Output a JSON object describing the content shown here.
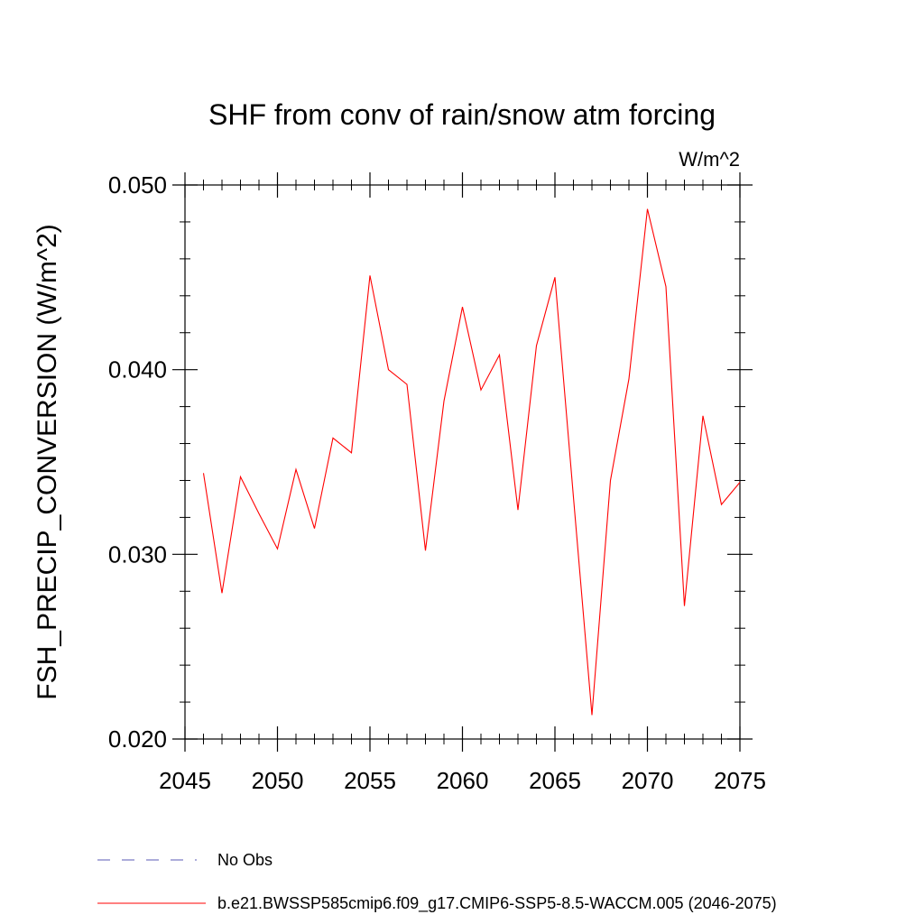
{
  "chart_data": {
    "type": "line",
    "title": "SHF from conv of rain/snow atm forcing",
    "units": "W/m^2",
    "ylabel": "FSH_PRECIP_CONVERSION  (W/m^2)",
    "xlabel": "",
    "xlim": [
      2045,
      2075
    ],
    "ylim": [
      0.02,
      0.05
    ],
    "x_ticks": [
      2045,
      2050,
      2055,
      2060,
      2065,
      2070,
      2075
    ],
    "x_tick_labels": [
      "2045",
      "2050",
      "2055",
      "2060",
      "2065",
      "2070",
      "2075"
    ],
    "y_ticks": [
      0.02,
      0.03,
      0.04,
      0.05
    ],
    "y_tick_labels": [
      "0.020",
      "0.030",
      "0.040",
      "0.050"
    ],
    "grid": false,
    "legend_position": "bottom",
    "series": [
      {
        "name": "b.e21.BWSSP585cmip6.f09_g17.CMIP6-SSP5-8.5-WACCM.005 (2046-2075)",
        "color": "#ff0000",
        "x": [
          2046,
          2047,
          2048,
          2049,
          2050,
          2051,
          2052,
          2053,
          2054,
          2055,
          2056,
          2057,
          2058,
          2059,
          2060,
          2061,
          2062,
          2063,
          2064,
          2065,
          2066,
          2067,
          2068,
          2069,
          2070,
          2071,
          2072,
          2073,
          2074,
          2075
        ],
        "y": [
          0.0344,
          0.0279,
          0.0342,
          0.0322,
          0.0303,
          0.0346,
          0.0314,
          0.0363,
          0.0355,
          0.0451,
          0.04,
          0.0392,
          0.0302,
          0.0383,
          0.0434,
          0.0389,
          0.0408,
          0.0324,
          0.0413,
          0.045,
          0.0331,
          0.0213,
          0.034,
          0.0395,
          0.0487,
          0.0445,
          0.0272,
          0.0375,
          0.0327,
          0.0339
        ]
      }
    ],
    "legend": [
      {
        "label": "No Obs",
        "color": "#5a5ab4",
        "dashed": true
      },
      {
        "label": "b.e21.BWSSP585cmip6.f09_g17.CMIP6-SSP5-8.5-WACCM.005 (2046-2075)",
        "color": "#ff0000",
        "dashed": false
      }
    ]
  }
}
